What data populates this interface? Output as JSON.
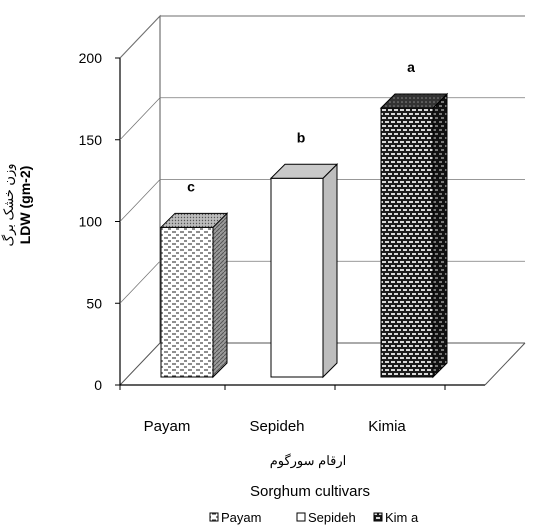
{
  "chart_data": {
    "type": "bar",
    "categories": [
      "Payam",
      "Sepideh",
      "Kimia"
    ],
    "values": [
      105,
      135,
      178
    ],
    "significance_letters": [
      "c",
      "b",
      "a"
    ],
    "ylabel_fa": "وزن خشک برگ",
    "ylabel": "LDW (gm-2)",
    "xlabel_fa": "ارقام سورگوم",
    "xlabel": "Sorghum cultivars",
    "ylim": [
      0,
      200
    ],
    "yticks": [
      "0",
      "50",
      "100",
      "150",
      "200"
    ],
    "grid": true,
    "legend_position": "bottom",
    "legend": [
      "Payam",
      "Sepideh",
      "Kim a"
    ]
  }
}
